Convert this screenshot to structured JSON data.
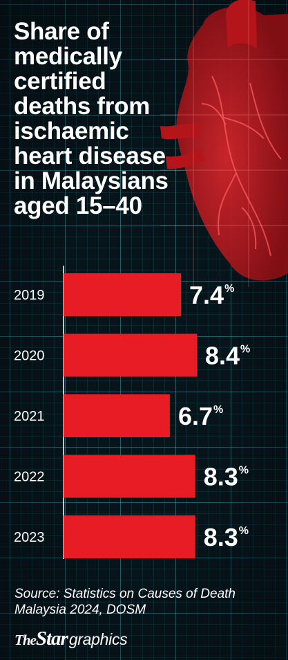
{
  "title": "Share of medically certified deaths from ischaemic heart disease in Malaysians aged 15–40",
  "colors": {
    "background": "#07141a",
    "bar": "#e81c24",
    "grid": "#40b0be",
    "text": "#ffffff"
  },
  "chart_data": {
    "type": "bar",
    "orientation": "horizontal",
    "categories": [
      "2019",
      "2020",
      "2021",
      "2022",
      "2023"
    ],
    "values": [
      7.4,
      8.4,
      6.7,
      8.3,
      8.3
    ],
    "value_labels": [
      "7.4",
      "8.4",
      "6.7",
      "8.3",
      "8.3"
    ],
    "unit": "%",
    "xlim": [
      0,
      8.4
    ],
    "grid": false,
    "legend": "none"
  },
  "source": "Source: Statistics on Causes of Death Malaysia 2024, DOSM",
  "logo": {
    "the": "The",
    "star": "Star",
    "graphics": "graphics"
  }
}
